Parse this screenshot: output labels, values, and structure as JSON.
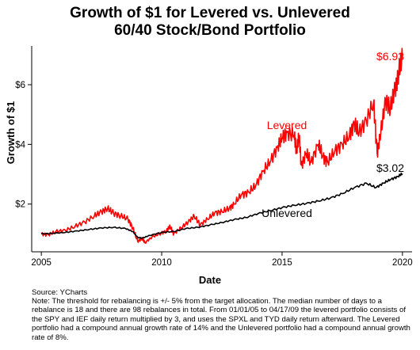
{
  "chart_data": {
    "type": "line",
    "title_line1": "Growth of $1 for Levered vs. Unlevered",
    "title_line2": "60/40 Stock/Bond Portfolio",
    "xlabel": "Date",
    "ylabel": "Growth of $1",
    "xlim": [
      2004.6,
      2020.4
    ],
    "ylim": [
      0.4,
      7.3
    ],
    "x_ticks": [
      2005,
      2010,
      2015,
      2020
    ],
    "y_ticks": [
      2,
      4,
      6
    ],
    "y_tick_labels": [
      "$2",
      "$4",
      "$6"
    ],
    "grid": false,
    "series": [
      {
        "name": "Levered",
        "color": "#ff0000",
        "end_label": "$6.93",
        "points": [
          [
            2005.0,
            1.0
          ],
          [
            2005.3,
            0.97
          ],
          [
            2005.6,
            1.08
          ],
          [
            2006.0,
            1.12
          ],
          [
            2006.4,
            1.25
          ],
          [
            2006.8,
            1.4
          ],
          [
            2007.2,
            1.6
          ],
          [
            2007.5,
            1.75
          ],
          [
            2007.75,
            1.85
          ],
          [
            2008.0,
            1.7
          ],
          [
            2008.3,
            1.6
          ],
          [
            2008.6,
            1.5
          ],
          [
            2008.8,
            1.2
          ],
          [
            2009.0,
            0.75
          ],
          [
            2009.2,
            0.85
          ],
          [
            2009.3,
            0.7
          ],
          [
            2009.6,
            0.9
          ],
          [
            2009.9,
            1.0
          ],
          [
            2010.2,
            1.1
          ],
          [
            2010.35,
            1.25
          ],
          [
            2010.5,
            1.0
          ],
          [
            2010.8,
            1.2
          ],
          [
            2011.1,
            1.4
          ],
          [
            2011.35,
            1.6
          ],
          [
            2011.6,
            1.3
          ],
          [
            2011.9,
            1.5
          ],
          [
            2012.2,
            1.7
          ],
          [
            2012.5,
            1.75
          ],
          [
            2012.8,
            1.85
          ],
          [
            2013.0,
            2.0
          ],
          [
            2013.3,
            2.3
          ],
          [
            2013.6,
            2.4
          ],
          [
            2013.9,
            2.6
          ],
          [
            2014.2,
            3.1
          ],
          [
            2014.5,
            3.4
          ],
          [
            2014.8,
            3.9
          ],
          [
            2015.0,
            4.2
          ],
          [
            2015.2,
            4.4
          ],
          [
            2015.5,
            4.3
          ],
          [
            2015.6,
            3.8
          ],
          [
            2015.7,
            4.3
          ],
          [
            2015.8,
            3.3
          ],
          [
            2016.0,
            3.7
          ],
          [
            2016.2,
            3.4
          ],
          [
            2016.5,
            4.0
          ],
          [
            2016.7,
            3.6
          ],
          [
            2016.9,
            3.4
          ],
          [
            2017.2,
            3.8
          ],
          [
            2017.5,
            4.0
          ],
          [
            2017.8,
            4.3
          ],
          [
            2018.0,
            4.7
          ],
          [
            2018.2,
            4.4
          ],
          [
            2018.5,
            4.8
          ],
          [
            2018.8,
            5.4
          ],
          [
            2018.95,
            3.7
          ],
          [
            2019.1,
            4.4
          ],
          [
            2019.3,
            5.5
          ],
          [
            2019.5,
            5.2
          ],
          [
            2019.7,
            5.9
          ],
          [
            2019.85,
            6.4
          ],
          [
            2020.0,
            6.93
          ]
        ]
      },
      {
        "name": "Unlevered",
        "color": "#000000",
        "end_label": "$3.02",
        "points": [
          [
            2005.0,
            1.0
          ],
          [
            2005.5,
            1.02
          ],
          [
            2006.0,
            1.05
          ],
          [
            2006.5,
            1.1
          ],
          [
            2007.0,
            1.15
          ],
          [
            2007.5,
            1.2
          ],
          [
            2008.0,
            1.22
          ],
          [
            2008.5,
            1.18
          ],
          [
            2008.8,
            1.08
          ],
          [
            2009.0,
            0.88
          ],
          [
            2009.2,
            0.86
          ],
          [
            2009.5,
            0.95
          ],
          [
            2010.0,
            1.05
          ],
          [
            2010.5,
            1.08
          ],
          [
            2011.0,
            1.18
          ],
          [
            2011.5,
            1.22
          ],
          [
            2012.0,
            1.3
          ],
          [
            2012.5,
            1.38
          ],
          [
            2013.0,
            1.48
          ],
          [
            2013.5,
            1.55
          ],
          [
            2014.0,
            1.68
          ],
          [
            2014.5,
            1.78
          ],
          [
            2015.0,
            1.88
          ],
          [
            2015.5,
            1.96
          ],
          [
            2016.0,
            2.02
          ],
          [
            2016.5,
            2.1
          ],
          [
            2017.0,
            2.2
          ],
          [
            2017.5,
            2.35
          ],
          [
            2018.0,
            2.55
          ],
          [
            2018.5,
            2.7
          ],
          [
            2018.9,
            2.55
          ],
          [
            2019.2,
            2.7
          ],
          [
            2019.5,
            2.82
          ],
          [
            2019.8,
            2.92
          ],
          [
            2020.0,
            3.02
          ]
        ]
      }
    ],
    "annotations": {
      "levered_label": "Levered",
      "unlevered_label": "Unlevered"
    }
  },
  "footer": {
    "source": "Source: YCharts",
    "note": "Note: The threshold for rebalancing is +/- 5% from the target allocation. The median number of days to a rebalance is 18 and there are 98 rebalances in total. From 01/01/05 to 04/17/09 the levered portfolio consists of the SPY and IEF daily return multiplied by 3, and uses the SPXL and TYD daily return afterward. The Levered portfolio had a compound annual growth rate of 14% and the Unlevered portfolio had a compound annual growth rate of 8%."
  }
}
